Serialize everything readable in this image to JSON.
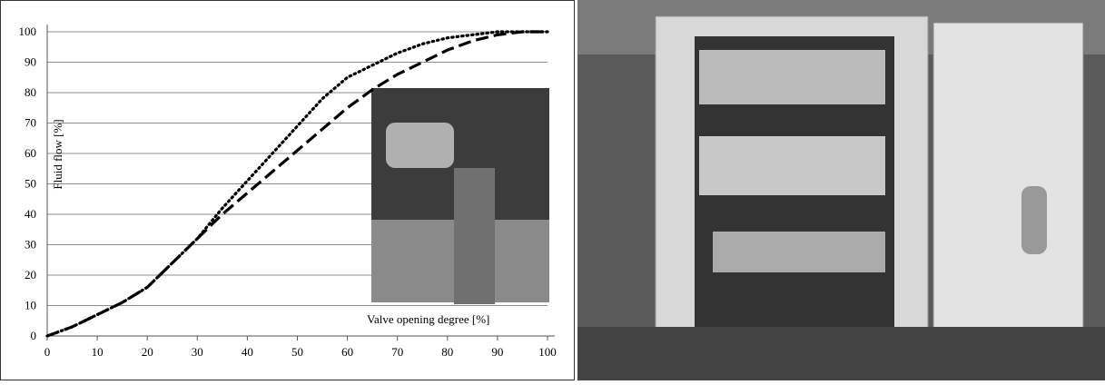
{
  "chart_data": {
    "type": "line",
    "x_label": "Valve opening degree  [%]",
    "y_label": "Fluid flow  [%]",
    "x": [
      0,
      5,
      10,
      15,
      20,
      25,
      30,
      35,
      40,
      45,
      50,
      55,
      60,
      65,
      70,
      75,
      80,
      85,
      90,
      95,
      100
    ],
    "series": [
      {
        "color": "#000000",
        "dash": "dotted",
        "values": [
          0,
          3,
          7,
          11,
          16,
          24,
          32,
          42,
          51,
          60,
          69,
          78,
          85,
          89,
          93,
          96,
          98,
          99,
          100,
          100,
          100
        ]
      },
      {
        "color": "#000000",
        "dash": "dashed",
        "values": [
          0,
          3,
          7,
          11,
          16,
          24,
          32,
          40,
          47,
          54,
          61,
          68,
          75,
          81,
          86,
          90,
          94,
          97,
          99,
          100,
          100
        ]
      }
    ],
    "xlim": [
      0,
      100
    ],
    "ylim": [
      0,
      100
    ],
    "xticks": [
      0,
      10,
      20,
      30,
      40,
      50,
      60,
      70,
      80,
      90,
      100
    ],
    "yticks": [
      0,
      10,
      20,
      30,
      40,
      50,
      60,
      70,
      80,
      90,
      100
    ],
    "grid": true
  }
}
